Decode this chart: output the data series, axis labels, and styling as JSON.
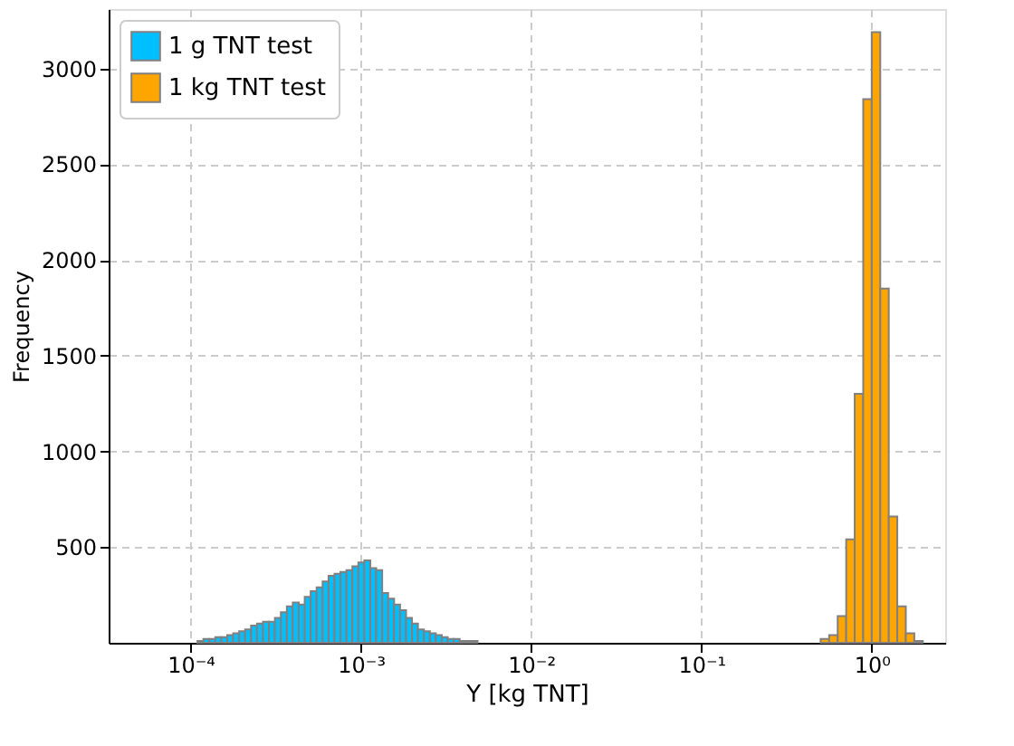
{
  "chart_data": {
    "type": "histogram",
    "xlabel": "Y [kg TNT]",
    "ylabel": "Frequency",
    "log": "x",
    "xlim": [
      3.3e-05,
      2.7
    ],
    "xticks": [
      {
        "value": 0.0001,
        "label": "10⁻⁴"
      },
      {
        "value": 0.001,
        "label": "10⁻³"
      },
      {
        "value": 0.01,
        "label": "10⁻²"
      },
      {
        "value": 0.1,
        "label": "10⁻¹"
      },
      {
        "value": 1,
        "label": "10⁰"
      }
    ],
    "ylim": [
      0,
      3310
    ],
    "yticks": [
      500,
      1000,
      1500,
      2000,
      2500,
      3000
    ],
    "grid": true,
    "legend": "top left",
    "bins": [
      0.00010965,
      0.00011885,
      0.00012882,
      0.00013964,
      0.00015136,
      0.00016406,
      0.00017783,
      0.00019275,
      0.00020893,
      0.00022646,
      0.00024547,
      0.00026607,
      0.0002884,
      0.00031261,
      0.00033884,
      0.00036728,
      0.00039811,
      0.00043152,
      0.00046774,
      0.00050699,
      0.00054954,
      0.00059566,
      0.00064565,
      0.00069984,
      0.00075858,
      0.00082224,
      0.00089125,
      0.00096605,
      0.0010471,
      0.001135,
      0.0012303,
      0.0013335,
      0.0014454,
      0.0015668,
      0.0016982,
      0.0018408,
      0.0019953,
      0.0021627,
      0.0023442,
      0.002541,
      0.0027542,
      0.0029854,
      0.0032359,
      0.0035075,
      0.0038019,
      0.004121,
      0.0044668,
      0.0048417,
      0.5012,
      0.5623,
      0.631,
      0.7079,
      0.7943,
      0.8913,
      1,
      1.122,
      1.2589,
      1.4125,
      1.5849,
      1.7783,
      1.9953
    ],
    "series": [
      {
        "name": "1 g TNT test",
        "color": "#00bfff",
        "values": [
          10,
          20,
          20,
          30,
          30,
          40,
          50,
          60,
          70,
          90,
          100,
          110,
          110,
          130,
          160,
          190,
          210,
          200,
          240,
          270,
          290,
          320,
          350,
          360,
          370,
          380,
          400,
          420,
          430,
          390,
          380,
          260,
          230,
          200,
          170,
          130,
          100,
          70,
          60,
          50,
          40,
          30,
          20,
          20,
          10,
          10,
          10,
          null,
          null,
          null,
          null,
          null,
          null,
          null,
          null,
          null,
          null,
          null,
          null,
          null
        ]
      },
      {
        "name": "1 kg TNT test",
        "color": "#ffa500",
        "values": [
          null,
          null,
          null,
          null,
          null,
          null,
          null,
          null,
          null,
          null,
          null,
          null,
          null,
          null,
          null,
          null,
          null,
          null,
          null,
          null,
          null,
          null,
          null,
          null,
          null,
          null,
          null,
          null,
          null,
          null,
          null,
          null,
          null,
          null,
          null,
          null,
          null,
          null,
          null,
          null,
          null,
          null,
          null,
          null,
          null,
          null,
          null,
          null,
          20,
          40,
          140,
          540,
          1300,
          2840,
          3190,
          1850,
          660,
          190,
          50,
          10
        ]
      }
    ]
  }
}
